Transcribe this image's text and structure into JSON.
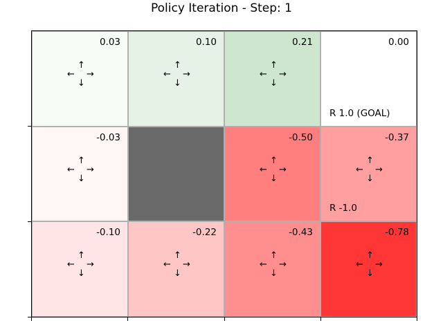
{
  "title": "Policy Iteration - Step: 1",
  "arrow_glyphs": {
    "up": "↑",
    "down": "↓",
    "left": "←",
    "right": "→"
  },
  "cells": [
    {
      "row": 0,
      "col": 0,
      "value": "0.03",
      "color": "#f5fbf5",
      "arrows": true,
      "reward": ""
    },
    {
      "row": 0,
      "col": 1,
      "value": "0.10",
      "color": "#e6f2e6",
      "arrows": true,
      "reward": ""
    },
    {
      "row": 0,
      "col": 2,
      "value": "0.21",
      "color": "#cde6cd",
      "arrows": true,
      "reward": ""
    },
    {
      "row": 0,
      "col": 3,
      "value": "0.00",
      "color": "#ffffff",
      "arrows": false,
      "reward": "R 1.0 (GOAL)"
    },
    {
      "row": 1,
      "col": 0,
      "value": "-0.03",
      "color": "#fff6f6",
      "arrows": true,
      "reward": ""
    },
    {
      "row": 1,
      "col": 1,
      "value": "",
      "color": "#696969",
      "arrows": false,
      "reward": "",
      "wall": true
    },
    {
      "row": 1,
      "col": 2,
      "value": "-0.50",
      "color": "#ff7f7f",
      "arrows": true,
      "reward": ""
    },
    {
      "row": 1,
      "col": 3,
      "value": "-0.37",
      "color": "#ff9f9f",
      "arrows": true,
      "reward": "R -1.0"
    },
    {
      "row": 2,
      "col": 0,
      "value": "-0.10",
      "color": "#ffe5e5",
      "arrows": true,
      "reward": ""
    },
    {
      "row": 2,
      "col": 1,
      "value": "-0.22",
      "color": "#ffc6c6",
      "arrows": true,
      "reward": ""
    },
    {
      "row": 2,
      "col": 2,
      "value": "-0.43",
      "color": "#ff8f8f",
      "arrows": true,
      "reward": ""
    },
    {
      "row": 2,
      "col": 3,
      "value": "-0.78",
      "color": "#ff3636",
      "arrows": true,
      "reward": ""
    }
  ]
}
